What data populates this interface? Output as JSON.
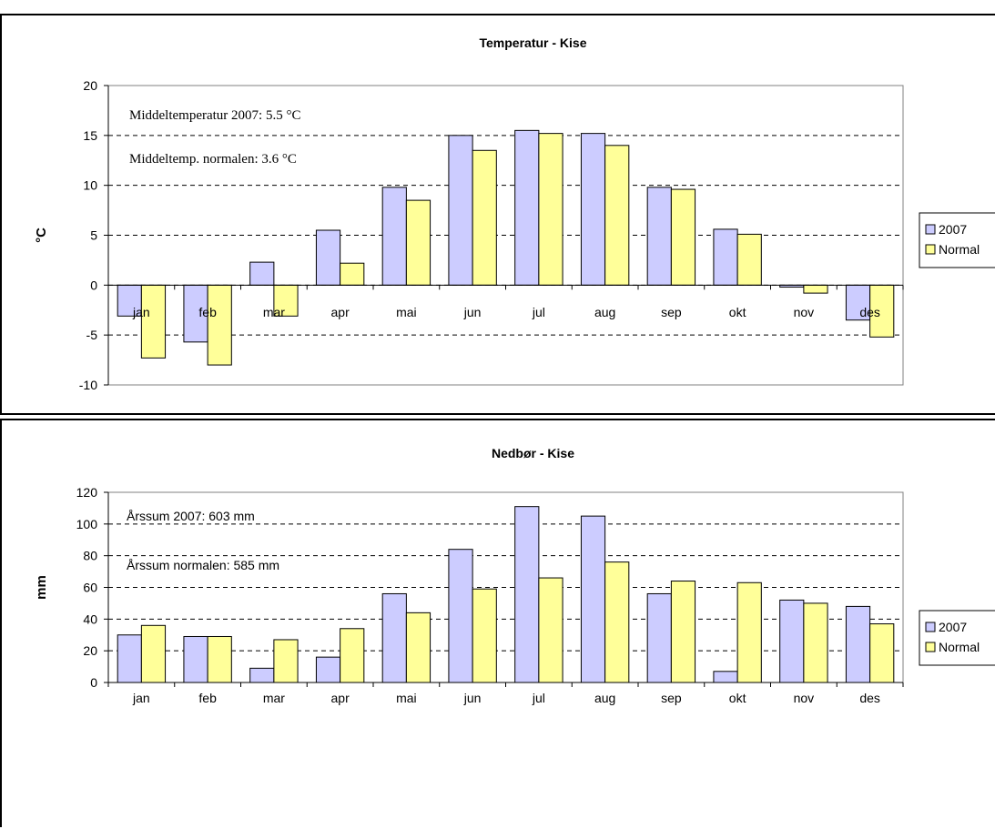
{
  "chart_data": [
    {
      "type": "bar",
      "title": "Temperatur - Kise",
      "ylabel": "°C",
      "xlabel": "",
      "ylim": [
        -10,
        20
      ],
      "yticks": [
        20,
        15,
        10,
        5,
        0,
        -5,
        -10
      ],
      "categories": [
        "jan",
        "feb",
        "mar",
        "apr",
        "mai",
        "jun",
        "jul",
        "aug",
        "sep",
        "okt",
        "nov",
        "des"
      ],
      "series": [
        {
          "name": "2007",
          "color": "#CCCCFF",
          "values": [
            -3.1,
            -5.7,
            2.3,
            5.5,
            9.8,
            15.0,
            15.5,
            15.2,
            9.8,
            5.6,
            -0.2,
            -3.5
          ]
        },
        {
          "name": "Normal",
          "color": "#FFFF99",
          "values": [
            -7.3,
            -8.0,
            -3.1,
            2.2,
            8.5,
            13.5,
            15.2,
            14.0,
            9.6,
            5.1,
            -0.8,
            -5.2
          ]
        }
      ],
      "annotations": [
        "Middeltemperatur 2007: 5.5 °C",
        "Middeltemp. normalen: 3.6 °C"
      ],
      "grid": true,
      "legend_position": "right"
    },
    {
      "type": "bar",
      "title": "Nedbør - Kise",
      "ylabel": "mm",
      "xlabel": "",
      "ylim": [
        0,
        120
      ],
      "yticks": [
        120,
        100,
        80,
        60,
        40,
        20,
        0
      ],
      "categories": [
        "jan",
        "feb",
        "mar",
        "apr",
        "mai",
        "jun",
        "jul",
        "aug",
        "sep",
        "okt",
        "nov",
        "des"
      ],
      "series": [
        {
          "name": "2007",
          "color": "#CCCCFF",
          "values": [
            30,
            29,
            9,
            16,
            56,
            84,
            111,
            105,
            56,
            7,
            52,
            48
          ]
        },
        {
          "name": "Normal",
          "color": "#FFFF99",
          "values": [
            36,
            29,
            27,
            34,
            44,
            59,
            66,
            76,
            64,
            63,
            50,
            37
          ]
        }
      ],
      "annotations": [
        "Årssum 2007: 603 mm",
        "Årssum normalen: 585 mm"
      ],
      "grid": true,
      "legend_position": "right"
    }
  ]
}
